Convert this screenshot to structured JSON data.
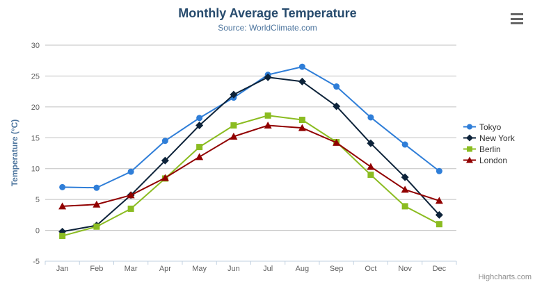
{
  "header": {
    "title": "Monthly Average Temperature",
    "subtitle": "Source: WorldClimate.com"
  },
  "credits": {
    "label": "Highcharts.com"
  },
  "context_menu": {
    "icon": "hamburger-menu-icon"
  },
  "chart_data": {
    "type": "line",
    "title": "Monthly Average Temperature",
    "subtitle": "Source: WorldClimate.com",
    "xlabel": "",
    "ylabel": "Temperature (°C)",
    "categories": [
      "Jan",
      "Feb",
      "Mar",
      "Apr",
      "May",
      "Jun",
      "Jul",
      "Aug",
      "Sep",
      "Oct",
      "Nov",
      "Dec"
    ],
    "series": [
      {
        "name": "Tokyo",
        "color": "#2f7ed8",
        "marker": "circle",
        "values": [
          7.0,
          6.9,
          9.5,
          14.5,
          18.2,
          21.5,
          25.2,
          26.5,
          23.3,
          18.3,
          13.9,
          9.6
        ]
      },
      {
        "name": "New York",
        "color": "#0d233a",
        "marker": "diamond",
        "values": [
          -0.2,
          0.8,
          5.7,
          11.3,
          17.0,
          22.0,
          24.8,
          24.1,
          20.1,
          14.1,
          8.6,
          2.5
        ]
      },
      {
        "name": "Berlin",
        "color": "#8bbc21",
        "marker": "square",
        "values": [
          -0.9,
          0.6,
          3.5,
          8.4,
          13.5,
          17.0,
          18.6,
          17.9,
          14.3,
          9.0,
          3.9,
          1.0
        ]
      },
      {
        "name": "London",
        "color": "#910000",
        "marker": "triangle",
        "values": [
          3.9,
          4.2,
          5.7,
          8.5,
          11.9,
          15.2,
          17.0,
          16.6,
          14.2,
          10.3,
          6.6,
          4.8
        ]
      }
    ],
    "ylim": [
      -5,
      30
    ],
    "yticks": [
      -5,
      0,
      5,
      10,
      15,
      20,
      25,
      30
    ],
    "grid": true,
    "legend_position": "right",
    "style": {
      "title_color": "#274b6d",
      "subtitle_color": "#4d759e",
      "axis_title_color": "#4d759e",
      "axis_label_color": "#606060",
      "grid_color": "#c0c0c0",
      "axis_line_color": "#c0d0e0",
      "legend_text_color": "#333333",
      "credits_color": "#909090",
      "menu_icon_color": "#666666",
      "background_color": "#ffffff"
    }
  }
}
